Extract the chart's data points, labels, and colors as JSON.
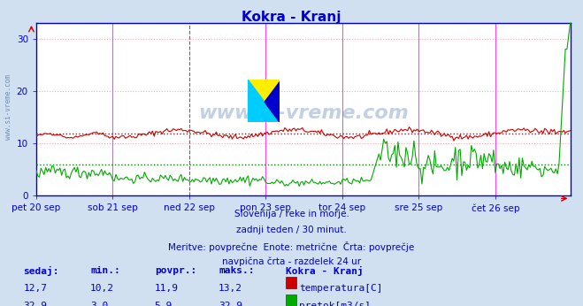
{
  "title": "Kokra - Kranj",
  "title_color": "#0000cc",
  "bg_color": "#d0e0f0",
  "plot_bg_color": "#ffffff",
  "x_labels": [
    "pet 20 sep",
    "sob 21 sep",
    "ned 22 sep",
    "pon 23 sep",
    "tor 24 sep",
    "sre 25 sep",
    "čet 26 sep"
  ],
  "y_ticks": [
    0,
    10,
    20,
    30
  ],
  "y_min": 0,
  "y_max": 33,
  "grid_color": "#ffaaaa",
  "grid_style": ":",
  "vline_color_magenta": "#ff44ff",
  "vline_color_dark": "#666666",
  "avg_line_color_red": "#cc0000",
  "avg_line_color_green": "#008800",
  "temp_line_color": "#cc0000",
  "flow_line_color": "#00aa00",
  "watermark_color": "#3366aa",
  "axis_color": "#0000cc",
  "subtitle_lines": [
    "Slovenija / reke in morje.",
    "zadnji teden / 30 minut.",
    "Meritve: povprečne  Enote: metrične  Črta: povprečje",
    "navpična črta - razdelek 24 ur"
  ],
  "table_headers": [
    "sedaj:",
    "min.:",
    "povpr.:",
    "maks.:",
    "Kokra - Kranj"
  ],
  "table_row1": [
    "12,7",
    "10,2",
    "11,9",
    "13,2"
  ],
  "table_row2": [
    "32,9",
    "3,0",
    "5,9",
    "32,9"
  ],
  "table_label1": "temperatura[C]",
  "table_label2": "pretok[m3/s]",
  "temp_avg": 11.9,
  "flow_avg": 5.9,
  "n_points": 336,
  "left_label": "www.si-vreme.com"
}
